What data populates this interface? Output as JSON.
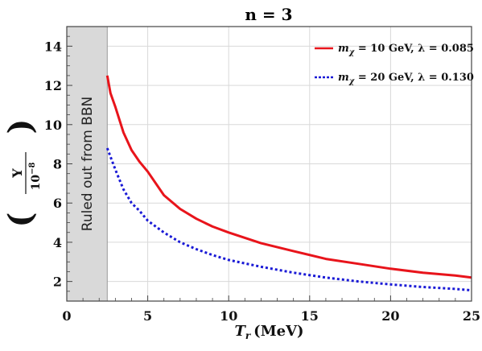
{
  "chart_data": {
    "type": "line",
    "title": "n = 3",
    "xlabel": "T_r (MeV)",
    "xlabel_symbol": "T",
    "xlabel_sub": "r",
    "xlabel_unit": "(MeV)",
    "ylabel_num": "Y",
    "ylabel_den": "10",
    "ylabel_den_exp": "−8",
    "xlim": [
      0,
      25
    ],
    "ylim": [
      1,
      15
    ],
    "xticks": [
      0,
      5,
      10,
      15,
      20,
      25
    ],
    "yticks": [
      2,
      4,
      6,
      8,
      10,
      12,
      14
    ],
    "grid": true,
    "legend_position": "top-right",
    "shaded_region": {
      "x_start": 0,
      "x_end": 2.5,
      "label": "Ruled out from BBN",
      "color": "#d9d9d9"
    },
    "series": [
      {
        "legend_m": "m",
        "legend_sub": "χ",
        "legend_rest": " = 10 GeV, λ = 0.085",
        "color": "#e8141b",
        "style": "solid",
        "x": [
          2.5,
          2.7,
          3.0,
          3.5,
          4.0,
          4.5,
          5.0,
          6.0,
          7.0,
          8.0,
          9.0,
          10.0,
          12.0,
          14.0,
          16.0,
          18.0,
          20.0,
          22.0,
          24.0,
          25.0
        ],
        "y": [
          12.5,
          11.6,
          10.9,
          9.6,
          8.7,
          8.1,
          7.6,
          6.4,
          5.7,
          5.2,
          4.8,
          4.5,
          3.95,
          3.55,
          3.15,
          2.9,
          2.65,
          2.45,
          2.3,
          2.2
        ]
      },
      {
        "legend_m": "m",
        "legend_sub": "χ",
        "legend_rest": " = 20 GeV,  λ = 0.130",
        "color": "#1a1ad6",
        "style": "dotted",
        "x": [
          2.5,
          3.0,
          3.5,
          4.0,
          4.5,
          5.0,
          6.0,
          7.0,
          8.0,
          9.0,
          10.0,
          12.0,
          14.0,
          16.0,
          18.0,
          20.0,
          22.0,
          24.0,
          25.0
        ],
        "y": [
          8.8,
          7.7,
          6.7,
          6.0,
          5.6,
          5.1,
          4.5,
          4.0,
          3.65,
          3.35,
          3.1,
          2.75,
          2.45,
          2.2,
          2.0,
          1.85,
          1.72,
          1.62,
          1.55
        ]
      }
    ]
  }
}
